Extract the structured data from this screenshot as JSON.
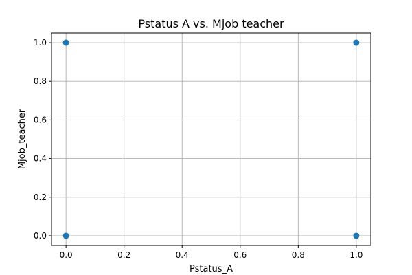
{
  "chart_data": {
    "type": "scatter",
    "title": "Pstatus A vs. Mjob teacher",
    "xlabel": "Pstatus_A",
    "ylabel": "Mjob_teacher",
    "xlim": [
      -0.05,
      1.05
    ],
    "ylim": [
      -0.05,
      1.05
    ],
    "xticks": [
      0.0,
      0.2,
      0.4,
      0.6,
      0.8,
      1.0
    ],
    "yticks": [
      0.0,
      0.2,
      0.4,
      0.6,
      0.8,
      1.0
    ],
    "xtick_labels": [
      "0.0",
      "0.2",
      "0.4",
      "0.6",
      "0.8",
      "1.0"
    ],
    "ytick_labels": [
      "0.0",
      "0.2",
      "0.4",
      "0.6",
      "0.8",
      "1.0"
    ],
    "grid": true,
    "marker_color": "#1f77b4",
    "points": [
      {
        "x": 0,
        "y": 1
      },
      {
        "x": 1,
        "y": 1
      },
      {
        "x": 0,
        "y": 0
      },
      {
        "x": 1,
        "y": 0
      }
    ]
  }
}
